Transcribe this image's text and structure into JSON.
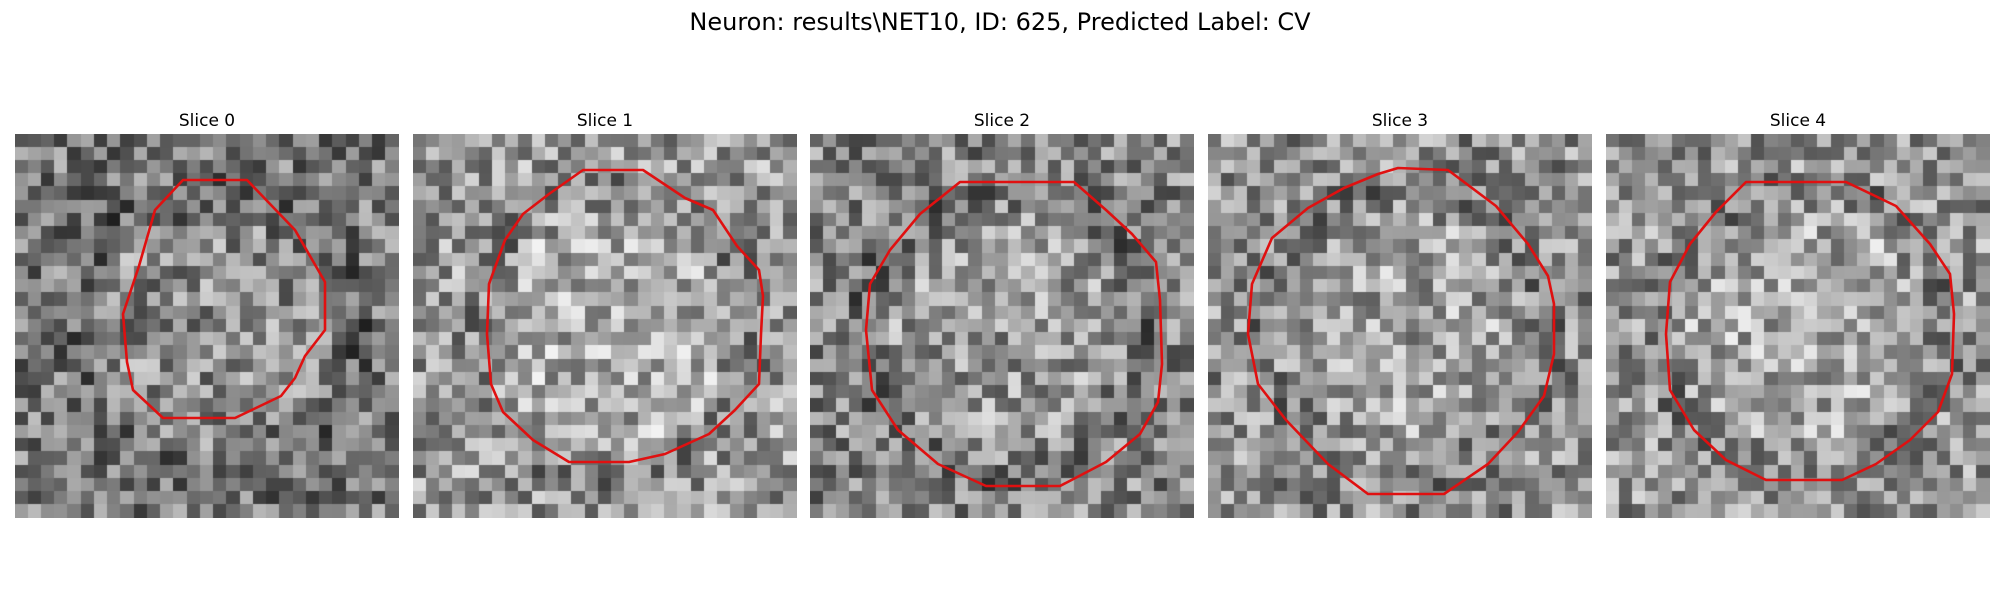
{
  "figure": {
    "title": "Neuron: results\\NET10, ID: 625, Predicted Label: CV",
    "contour_color": "#e01010",
    "panels": [
      {
        "label": "Slice 0",
        "seed": 11,
        "bias": -0.05
      },
      {
        "label": "Slice 1",
        "seed": 23,
        "bias": 0.08
      },
      {
        "label": "Slice 2",
        "seed": 37,
        "bias": 0.0
      },
      {
        "label": "Slice 3",
        "seed": 41,
        "bias": 0.04
      },
      {
        "label": "Slice 4",
        "seed": 53,
        "bias": 0.06
      }
    ]
  }
}
